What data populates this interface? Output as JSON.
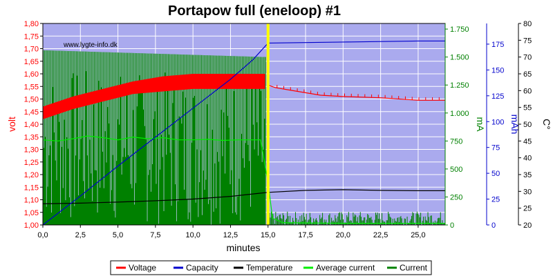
{
  "chart_data": {
    "type": "line",
    "title": "Portapow full (eneloop) #1",
    "watermark": "www.lygte-info.dk",
    "xlabel": "minutes",
    "xlim": [
      0,
      26.8
    ],
    "x_ticks": [
      "0,0",
      "2,5",
      "5,0",
      "7,5",
      "10,0",
      "12,5",
      "15,0",
      "17,5",
      "20,0",
      "22,5",
      "25,0"
    ],
    "x_tick_values": [
      0,
      2.5,
      5,
      7.5,
      10,
      12.5,
      15,
      17.5,
      20,
      22.5,
      25
    ],
    "grid": true,
    "background_color": "#aaaaee",
    "marker_line": {
      "x": 15.0,
      "color": "#ffff00"
    },
    "axes": {
      "volt": {
        "label": "volt",
        "color": "#ff0000",
        "side": "left",
        "range": [
          1.0,
          1.8
        ],
        "ticks": [
          "1,00",
          "1,05",
          "1,10",
          "1,15",
          "1,20",
          "1,25",
          "1,30",
          "1,35",
          "1,40",
          "1,45",
          "1,50",
          "1,55",
          "1,60",
          "1,65",
          "1,70",
          "1,75",
          "1,80"
        ]
      },
      "mA": {
        "label": "mA",
        "color": "#008000",
        "side": "right",
        "range": [
          0,
          1800
        ],
        "ticks": [
          "0",
          "250",
          "500",
          "750",
          "1.000",
          "1.250",
          "1.500",
          "1.750"
        ]
      },
      "mAh": {
        "label": "mAh",
        "color": "#0000cc",
        "side": "right",
        "range": [
          0,
          195
        ],
        "ticks": [
          "0",
          "25",
          "50",
          "75",
          "100",
          "125",
          "150",
          "175"
        ]
      },
      "C": {
        "label": "C°",
        "color": "#000000",
        "side": "right",
        "range": [
          20,
          80
        ],
        "ticks": [
          "20",
          "25",
          "30",
          "35",
          "40",
          "45",
          "50",
          "55",
          "60",
          "65",
          "70",
          "75",
          "80"
        ]
      }
    },
    "series": [
      {
        "name": "Voltage",
        "color": "#ff0000",
        "axis": "volt",
        "band": {
          "x": [
            0,
            2,
            4,
            6,
            8,
            10,
            12,
            14.8
          ],
          "low": [
            1.42,
            1.46,
            1.49,
            1.52,
            1.53,
            1.54,
            1.54,
            1.54
          ],
          "high": [
            1.47,
            1.51,
            1.54,
            1.57,
            1.59,
            1.6,
            1.6,
            1.6
          ]
        },
        "x": [
          15.0,
          15.5,
          16.5,
          17.5,
          18.5,
          20,
          22.5,
          25,
          26.8
        ],
        "values": [
          1.555,
          1.545,
          1.535,
          1.525,
          1.515,
          1.51,
          1.505,
          1.495,
          1.495
        ]
      },
      {
        "name": "Capacity",
        "color": "#0000cc",
        "axis": "mAh",
        "x": [
          0,
          2.5,
          5,
          7.5,
          10,
          12.5,
          14.0,
          15.0,
          20,
          25,
          26.8
        ],
        "values": [
          0,
          28,
          57,
          85,
          113,
          141,
          160,
          176,
          177,
          178,
          178
        ]
      },
      {
        "name": "Temperature",
        "color": "#000000",
        "axis": "C",
        "x": [
          0,
          2.5,
          5,
          7.5,
          10,
          12.5,
          15,
          17.5,
          20,
          22.5,
          25,
          26.8
        ],
        "values": [
          26.3,
          26.5,
          26.8,
          27.2,
          27.7,
          28.5,
          29.7,
          30.3,
          30.5,
          30.3,
          30.2,
          30.2
        ]
      },
      {
        "name": "Average current",
        "color": "#00ee00",
        "axis": "mA",
        "x": [
          0,
          1,
          2,
          3,
          4,
          5,
          6,
          7,
          8,
          9,
          10,
          11,
          12,
          13,
          14.5,
          15.0,
          15.3,
          16,
          20,
          25,
          26.8
        ],
        "values": [
          760,
          750,
          770,
          795,
          780,
          760,
          785,
          770,
          780,
          760,
          760,
          765,
          755,
          760,
          760,
          380,
          60,
          20,
          15,
          15,
          15
        ]
      },
      {
        "name": "Current",
        "color": "#008000",
        "axis": "mA",
        "fill": {
          "x0": 0,
          "x1": 14.85,
          "top_start": 1560,
          "top_end": 1500,
          "baseline": 0
        },
        "tail": {
          "x0": 15.0,
          "x1": 26.8,
          "max": 120
        }
      }
    ],
    "legend": {
      "placement": "bottom",
      "entries": [
        {
          "label": "Voltage",
          "color": "#ff0000"
        },
        {
          "label": "Capacity",
          "color": "#0000cc"
        },
        {
          "label": "Temperature",
          "color": "#000000"
        },
        {
          "label": "Average current",
          "color": "#00ee00"
        },
        {
          "label": "Current",
          "color": "#008000"
        }
      ]
    }
  }
}
